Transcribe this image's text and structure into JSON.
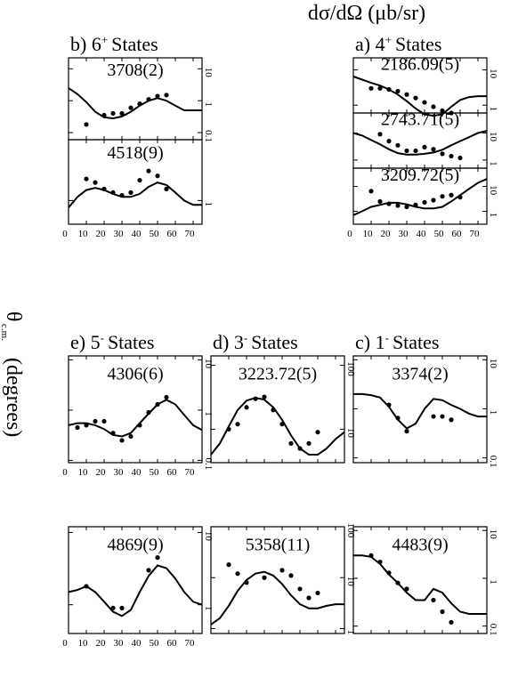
{
  "figure": {
    "ylabel": "dσ/dΩ (μb/sr)",
    "xlabel_main": "θ",
    "xlabel_sub": "c.m.",
    "xlabel_unit": "(degrees)"
  },
  "chart_data": [
    {
      "type": "scatter",
      "panel": "a",
      "title_prefix": "a)",
      "title_num": "4",
      "title_sup": "+",
      "title_word": "States",
      "label": "2186.09(5)",
      "ylog": true,
      "ylim": [
        0.6,
        22
      ],
      "yticks": [
        1,
        10
      ],
      "xlim": [
        0,
        75
      ],
      "x": [
        10,
        15,
        20,
        25,
        30,
        35,
        40,
        45,
        50,
        55
      ],
      "y": [
        3.0,
        3.0,
        2.8,
        2.5,
        2.0,
        1.6,
        1.2,
        0.9,
        0.7,
        0.6
      ],
      "curve_x": [
        0,
        5,
        10,
        15,
        20,
        25,
        30,
        35,
        40,
        45,
        50,
        55,
        60,
        65,
        70,
        75
      ],
      "curve_y": [
        6.5,
        5.3,
        4.3,
        3.6,
        2.8,
        2.0,
        1.3,
        0.8,
        0.55,
        0.5,
        0.55,
        0.9,
        1.4,
        1.7,
        1.8,
        1.8
      ]
    },
    {
      "type": "scatter",
      "panel": "a2",
      "label": "2743.71(5)",
      "ylog": true,
      "ylim": [
        0.5,
        55
      ],
      "yticks": [
        1,
        10
      ],
      "xlim": [
        0,
        75
      ],
      "x": [
        15,
        20,
        25,
        30,
        35,
        40,
        45,
        50,
        55,
        60
      ],
      "y": [
        9,
        5,
        3.5,
        2.2,
        2.2,
        3,
        2.5,
        1.7,
        1.4,
        1.2
      ],
      "curve_x": [
        0,
        5,
        10,
        15,
        20,
        25,
        30,
        35,
        40,
        45,
        50,
        55,
        60,
        65,
        70,
        75
      ],
      "curve_y": [
        10,
        8,
        5.5,
        3.8,
        2.5,
        1.8,
        1.6,
        1.6,
        1.7,
        1.9,
        2.4,
        3.5,
        5,
        7,
        10,
        12
      ]
    },
    {
      "type": "scatter",
      "panel": "a3",
      "label": "3209.72(5)",
      "ylog": true,
      "ylim": [
        0.3,
        55
      ],
      "yticks": [
        1,
        10
      ],
      "xlim": [
        0,
        75
      ],
      "x": [
        10,
        15,
        20,
        25,
        30,
        35,
        40,
        45,
        50,
        55,
        60
      ],
      "y": [
        6.5,
        2.5,
        2.0,
        1.7,
        1.5,
        1.8,
        2.3,
        2.8,
        4,
        4.5,
        3.7
      ],
      "curve_x": [
        0,
        5,
        10,
        15,
        20,
        25,
        30,
        35,
        40,
        45,
        50,
        55,
        60,
        65,
        70,
        75
      ],
      "curve_y": [
        0.7,
        1.0,
        1.5,
        1.8,
        2.2,
        2.2,
        1.9,
        1.5,
        1.3,
        1.3,
        1.5,
        2.5,
        4.5,
        8,
        14,
        20
      ]
    },
    {
      "type": "scatter",
      "panel": "b",
      "title_prefix": "b)",
      "title_num": "6",
      "title_sup": "+",
      "title_word": "States",
      "label": "3708(2)",
      "ylog": true,
      "ylim": [
        0.06,
        22
      ],
      "yticks": [
        0.1,
        1,
        10
      ],
      "xlim": [
        0,
        75
      ],
      "x": [
        10,
        20,
        25,
        30,
        35,
        40,
        45,
        50,
        55
      ],
      "y": [
        0.18,
        0.35,
        0.4,
        0.4,
        0.6,
        0.8,
        1.1,
        1.4,
        1.5
      ],
      "curve_x": [
        0,
        5,
        10,
        15,
        20,
        25,
        30,
        35,
        40,
        45,
        50,
        55,
        60,
        65,
        70,
        75
      ],
      "curve_y": [
        2.5,
        1.6,
        0.9,
        0.45,
        0.3,
        0.28,
        0.32,
        0.45,
        0.7,
        1.0,
        1.2,
        1.0,
        0.7,
        0.5,
        0.5,
        0.5
      ]
    },
    {
      "type": "scatter",
      "panel": "b2",
      "label": "4518(9)",
      "ylog": true,
      "ylim": [
        0.3,
        22
      ],
      "yticks": [
        1
      ],
      "xlim": [
        0,
        75
      ],
      "x": [
        10,
        15,
        20,
        25,
        30,
        35,
        40,
        45,
        50,
        55
      ],
      "y": [
        3.0,
        2.5,
        1.8,
        1.5,
        1.3,
        1.5,
        2.8,
        4.5,
        3.5,
        1.8
      ],
      "curve_x": [
        0,
        5,
        10,
        15,
        20,
        25,
        30,
        35,
        40,
        45,
        50,
        55,
        60,
        65,
        70,
        75
      ],
      "curve_y": [
        0.7,
        1.2,
        1.7,
        1.9,
        1.7,
        1.4,
        1.2,
        1.2,
        1.4,
        2.0,
        2.5,
        2.2,
        1.5,
        1.0,
        0.8,
        0.8
      ]
    },
    {
      "type": "scatter",
      "panel": "c",
      "title_prefix": "c)",
      "title_num": "1",
      "title_sup": "-",
      "title_word": "States",
      "label": "3374(2)",
      "ylog": true,
      "ylim": [
        0.08,
        12
      ],
      "yticks": [
        0.1,
        1,
        10
      ],
      "xlim": [
        0,
        75
      ],
      "x": [
        20,
        25,
        30,
        45,
        50,
        55
      ],
      "y": [
        1.2,
        0.65,
        0.35,
        0.7,
        0.7,
        0.6
      ],
      "curve_x": [
        0,
        5,
        10,
        15,
        20,
        25,
        30,
        35,
        40,
        45,
        50,
        55,
        60,
        65,
        70,
        75
      ],
      "curve_y": [
        2.0,
        2.0,
        1.9,
        1.7,
        1.1,
        0.6,
        0.4,
        0.5,
        1.0,
        1.6,
        1.5,
        1.2,
        1.0,
        0.8,
        0.7,
        0.7
      ]
    },
    {
      "type": "scatter",
      "panel": "d",
      "title_prefix": "d)",
      "title_num": "3",
      "title_sup": "-",
      "title_word": "States",
      "label": "3223.72(5)",
      "ylog": true,
      "ylim": [
        3,
        140
      ],
      "yticks": [
        10,
        100
      ],
      "xlim": [
        0,
        75
      ],
      "x": [
        10,
        15,
        20,
        25,
        30,
        35,
        40,
        45,
        50,
        55,
        60
      ],
      "y": [
        10,
        12,
        22,
        30,
        32,
        20,
        12,
        6,
        5,
        6,
        9
      ],
      "curve_x": [
        0,
        5,
        10,
        15,
        20,
        25,
        30,
        35,
        40,
        45,
        50,
        55,
        60,
        65,
        70,
        75
      ],
      "curve_y": [
        4,
        6,
        11,
        20,
        28,
        31,
        29,
        22,
        14,
        8,
        5,
        4,
        4,
        5,
        7,
        9
      ]
    },
    {
      "type": "scatter",
      "panel": "e",
      "title_prefix": "e)",
      "title_num": "5",
      "title_sup": "-",
      "title_word": "States",
      "label": "4306(6)",
      "ylog": true,
      "ylim": [
        0.09,
        12
      ],
      "yticks": [
        0.1,
        1,
        10
      ],
      "xlim": [
        0,
        75
      ],
      "x": [
        5,
        10,
        15,
        20,
        25,
        30,
        35,
        40,
        45,
        50,
        55
      ],
      "y": [
        0.45,
        0.5,
        0.6,
        0.6,
        0.35,
        0.25,
        0.3,
        0.5,
        0.9,
        1.3,
        1.8
      ],
      "curve_x": [
        0,
        5,
        10,
        15,
        20,
        25,
        30,
        35,
        40,
        45,
        50,
        55,
        60,
        65,
        70,
        75
      ],
      "curve_y": [
        0.5,
        0.55,
        0.55,
        0.5,
        0.42,
        0.32,
        0.3,
        0.35,
        0.55,
        0.85,
        1.3,
        1.6,
        1.3,
        0.8,
        0.5,
        0.4
      ]
    },
    {
      "type": "scatter",
      "panel": "f",
      "label": "4483(9)",
      "ylog": true,
      "ylim": [
        0.07,
        12
      ],
      "yticks": [
        0.1,
        1,
        10
      ],
      "xlim": [
        0,
        75
      ],
      "x": [
        10,
        15,
        20,
        25,
        30,
        45,
        50,
        55
      ],
      "y": [
        3,
        2.2,
        1.3,
        0.8,
        0.6,
        0.35,
        0.2,
        0.12
      ],
      "curve_x": [
        0,
        5,
        10,
        15,
        20,
        25,
        30,
        35,
        40,
        45,
        50,
        55,
        60,
        65,
        70,
        75
      ],
      "curve_y": [
        3,
        3,
        2.8,
        2.0,
        1.2,
        0.8,
        0.5,
        0.35,
        0.35,
        0.6,
        0.5,
        0.3,
        0.2,
        0.18,
        0.18,
        0.18
      ]
    },
    {
      "type": "scatter",
      "panel": "g",
      "label": "5358(11)",
      "ylog": true,
      "ylim": [
        0.8,
        100
      ],
      "yticks": [
        1,
        10,
        100
      ],
      "xlim": [
        0,
        75
      ],
      "x": [
        10,
        15,
        20,
        30,
        40,
        45,
        50,
        55,
        60
      ],
      "y": [
        18,
        12,
        8,
        10,
        14,
        11,
        6,
        4,
        5
      ],
      "curve_x": [
        0,
        5,
        10,
        15,
        20,
        25,
        30,
        35,
        40,
        45,
        50,
        55,
        60,
        65,
        70,
        75
      ],
      "curve_y": [
        1.2,
        1.6,
        2.8,
        5.5,
        9,
        12,
        13,
        11,
        7.5,
        4.5,
        3,
        2.5,
        2.5,
        2.8,
        3,
        3
      ]
    },
    {
      "type": "scatter",
      "panel": "h",
      "label": "4869(9)",
      "ylog": true,
      "ylim": [
        0.4,
        12
      ],
      "yticks": [
        1,
        10
      ],
      "xlim": [
        0,
        75
      ],
      "x": [
        10,
        25,
        30,
        45,
        50
      ],
      "y": [
        1.8,
        0.9,
        0.9,
        3.0,
        4.5
      ],
      "curve_x": [
        0,
        5,
        10,
        15,
        20,
        25,
        30,
        35,
        40,
        45,
        50,
        55,
        60,
        65,
        70,
        75
      ],
      "curve_y": [
        1.5,
        1.6,
        1.8,
        1.5,
        1.1,
        0.8,
        0.7,
        0.85,
        1.5,
        2.5,
        3.5,
        3.2,
        2.3,
        1.5,
        1.1,
        1.0
      ]
    }
  ]
}
